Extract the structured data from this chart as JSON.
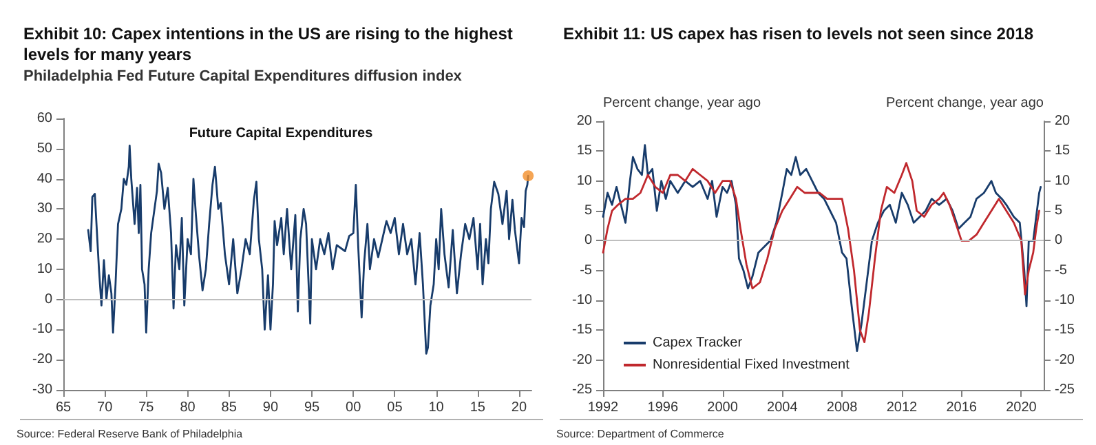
{
  "chart_data": [
    {
      "type": "line",
      "title": "Exhibit 10: Capex intentions in the US are rising to the highest levels for many years",
      "subtitle": "Philadelphia Fed Future Capital Expenditures diffusion index",
      "annotations": [
        "Future Capital Expenditures",
        "Source: Federal Reserve Bank of Philadelphia"
      ],
      "xlim": [
        1965,
        2021.5
      ],
      "xticks": [
        {
          "value": 1965,
          "label": "65"
        },
        {
          "value": 1970,
          "label": "70"
        },
        {
          "value": 1975,
          "label": "75"
        },
        {
          "value": 1980,
          "label": "80"
        },
        {
          "value": 1985,
          "label": "85"
        },
        {
          "value": 1990,
          "label": "90"
        },
        {
          "value": 1995,
          "label": "95"
        },
        {
          "value": 2000,
          "label": "00"
        },
        {
          "value": 2005,
          "label": "05"
        },
        {
          "value": 2010,
          "label": "10"
        },
        {
          "value": 2015,
          "label": "15"
        },
        {
          "value": 2020,
          "label": "20"
        }
      ],
      "ylim": [
        -30,
        60
      ],
      "yticks": [
        -30,
        -20,
        -10,
        0,
        10,
        20,
        30,
        40,
        50,
        60
      ],
      "grid": false,
      "legend": false,
      "ref_lines": [
        {
          "axis": "y",
          "value": 0,
          "color": "#bfbfbf"
        }
      ],
      "series": [
        {
          "color": "#183c6b",
          "x": [
            1968.0,
            1968.3,
            1968.5,
            1968.8,
            1969.0,
            1969.3,
            1969.6,
            1969.9,
            1970.2,
            1970.5,
            1970.8,
            1971.0,
            1971.3,
            1971.6,
            1972.0,
            1972.3,
            1972.6,
            1972.9,
            1973.0,
            1973.2,
            1973.6,
            1973.9,
            1974.1,
            1974.3,
            1974.5,
            1974.8,
            1975.0,
            1975.3,
            1975.6,
            1976.0,
            1976.3,
            1976.5,
            1976.8,
            1977.2,
            1977.6,
            1978.0,
            1978.3,
            1978.6,
            1979.0,
            1979.3,
            1979.6,
            1980.0,
            1980.4,
            1980.7,
            1981.0,
            1981.4,
            1981.8,
            1982.2,
            1982.6,
            1983.0,
            1983.3,
            1983.7,
            1984.0,
            1984.5,
            1985.0,
            1985.5,
            1986.0,
            1986.5,
            1987.0,
            1987.5,
            1988.0,
            1988.3,
            1988.6,
            1989.0,
            1989.3,
            1989.7,
            1990.0,
            1990.3,
            1990.5,
            1990.8,
            1991.3,
            1991.6,
            1992.0,
            1992.5,
            1993.0,
            1993.3,
            1993.6,
            1994.0,
            1994.3,
            1994.8,
            1995.0,
            1995.5,
            1996.0,
            1996.5,
            1997.0,
            1997.5,
            1998.0,
            1998.5,
            1999.0,
            1999.5,
            2000.0,
            2000.3,
            2000.6,
            2001.0,
            2001.3,
            2001.7,
            2002.0,
            2002.5,
            2003.0,
            2003.5,
            2004.0,
            2004.5,
            2005.0,
            2005.5,
            2006.0,
            2006.5,
            2007.0,
            2007.5,
            2008.0,
            2008.4,
            2008.8,
            2009.0,
            2009.3,
            2009.7,
            2010.0,
            2010.3,
            2010.6,
            2011.0,
            2011.5,
            2012.0,
            2012.5,
            2013.0,
            2013.5,
            2014.0,
            2014.5,
            2015.0,
            2015.3,
            2015.6,
            2016.0,
            2016.3,
            2016.6,
            2017.0,
            2017.5,
            2018.0,
            2018.5,
            2018.8,
            2019.2,
            2019.5,
            2020.0,
            2020.3,
            2020.6,
            2020.8,
            2021.0,
            2021.1
          ],
          "values": [
            23,
            16,
            34,
            35,
            25,
            10,
            -2,
            13,
            0,
            8,
            2,
            -11,
            5,
            25,
            30,
            40,
            38,
            44,
            51,
            40,
            25,
            37,
            22,
            38,
            10,
            5,
            -11,
            10,
            22,
            30,
            36,
            45,
            42,
            30,
            37,
            22,
            -3,
            18,
            10,
            27,
            -2,
            20,
            15,
            40,
            28,
            14,
            3,
            10,
            25,
            38,
            44,
            30,
            32,
            15,
            5,
            20,
            2,
            10,
            20,
            15,
            33,
            39,
            20,
            10,
            -10,
            8,
            -10,
            5,
            26,
            18,
            27,
            15,
            30,
            10,
            28,
            -4,
            20,
            30,
            25,
            -8,
            20,
            10,
            20,
            15,
            22,
            10,
            18,
            17,
            16,
            21,
            22,
            38,
            17,
            -6,
            12,
            25,
            10,
            20,
            14,
            20,
            26,
            22,
            27,
            15,
            25,
            15,
            20,
            5,
            22,
            5,
            -18,
            -16,
            -2,
            5,
            20,
            10,
            30,
            15,
            4,
            23,
            2,
            15,
            25,
            20,
            27,
            10,
            25,
            5,
            20,
            12,
            30,
            39,
            35,
            25,
            36,
            20,
            33,
            23,
            12,
            27,
            24,
            36,
            38,
            41
          ]
        },
        {
          "type": "scatter",
          "color": "#f28e2b",
          "x": [
            2021.1
          ],
          "values": [
            41
          ]
        }
      ]
    },
    {
      "type": "line",
      "title": "Exhibit 11: US capex has risen to levels not seen since 2018",
      "ylabel": "Percent change, year ago",
      "y2label": "Percent change, year ago",
      "annotations": [
        "Source: Department of Commerce"
      ],
      "xlim": [
        1992,
        2021.5
      ],
      "xticks": [
        1992,
        1996,
        2000,
        2004,
        2008,
        2012,
        2016,
        2020
      ],
      "ylim": [
        -25,
        20
      ],
      "yticks": [
        -25,
        -20,
        -15,
        -10,
        -5,
        0,
        5,
        10,
        15,
        20
      ],
      "y2lim": [
        -25,
        20
      ],
      "y2ticks": [
        -25,
        -20,
        -15,
        -10,
        -5,
        0,
        5,
        10,
        15,
        20
      ],
      "grid": false,
      "legend": "bottom left",
      "ref_lines": [
        {
          "axis": "y",
          "value": 0,
          "color": "#bfbfbf"
        }
      ],
      "series": [
        {
          "name": "Capex Tracker",
          "color": "#183c6b",
          "x": [
            1992.0,
            1992.3,
            1992.6,
            1992.9,
            1993.2,
            1993.5,
            1993.8,
            1994.0,
            1994.3,
            1994.6,
            1994.8,
            1995.0,
            1995.3,
            1995.6,
            1995.9,
            1996.2,
            1996.5,
            1997.0,
            1997.5,
            1998.0,
            1998.5,
            1999.0,
            1999.3,
            1999.6,
            2000.0,
            2000.3,
            2000.6,
            2000.9,
            2001.1,
            2001.4,
            2001.7,
            2002.0,
            2002.4,
            2002.8,
            2003.2,
            2003.6,
            2004.0,
            2004.3,
            2004.6,
            2004.9,
            2005.2,
            2005.6,
            2006.0,
            2006.4,
            2006.8,
            2007.2,
            2007.6,
            2008.0,
            2008.3,
            2008.6,
            2009.0,
            2009.3,
            2009.7,
            2010.0,
            2010.4,
            2010.8,
            2011.2,
            2011.6,
            2012.0,
            2012.4,
            2012.8,
            2013.2,
            2013.6,
            2014.0,
            2014.5,
            2015.0,
            2015.4,
            2015.8,
            2016.2,
            2016.6,
            2017.0,
            2017.5,
            2018.0,
            2018.3,
            2018.7,
            2019.0,
            2019.5,
            2019.9,
            2020.2,
            2020.35,
            2020.5,
            2020.8,
            2021.0,
            2021.2,
            2021.3
          ],
          "values": [
            4,
            8,
            6,
            9,
            6,
            3,
            10,
            14,
            12,
            11,
            16,
            11,
            12,
            5,
            10,
            7,
            10,
            8,
            10,
            9,
            10,
            7,
            10,
            4,
            9,
            8,
            10,
            6,
            -3,
            -5,
            -8,
            -6,
            -2,
            -1,
            0,
            3,
            8,
            12,
            11,
            14,
            11,
            12,
            10,
            8,
            7,
            5,
            3,
            -2,
            -3,
            -10,
            -18.5,
            -14,
            -6,
            0,
            3,
            5,
            6,
            3,
            8,
            6,
            3,
            4,
            5,
            7,
            6,
            7,
            5,
            2,
            3,
            4,
            7,
            8,
            10,
            8,
            7,
            6,
            4,
            3,
            -5,
            -11,
            0,
            0,
            4,
            8,
            9
          ]
        },
        {
          "name": "Nonresidential Fixed Investment",
          "color": "#c0282d",
          "x": [
            1992.0,
            1992.3,
            1992.6,
            1993.0,
            1993.5,
            1994.0,
            1994.5,
            1995.0,
            1995.5,
            1996.0,
            1996.5,
            1997.0,
            1997.5,
            1998.0,
            1998.5,
            1999.0,
            1999.5,
            2000.0,
            2000.5,
            2000.9,
            2001.2,
            2001.6,
            2002.0,
            2002.5,
            2003.0,
            2003.5,
            2004.0,
            2004.5,
            2005.0,
            2005.5,
            2006.0,
            2006.5,
            2007.0,
            2007.5,
            2008.0,
            2008.4,
            2008.8,
            2009.2,
            2009.5,
            2009.8,
            2010.2,
            2010.6,
            2011.0,
            2011.5,
            2012.0,
            2012.3,
            2012.7,
            2013.0,
            2013.5,
            2014.0,
            2014.5,
            2014.8,
            2015.2,
            2015.6,
            2016.0,
            2016.5,
            2017.0,
            2017.5,
            2018.0,
            2018.5,
            2019.0,
            2019.5,
            2020.0,
            2020.25,
            2020.5,
            2020.8,
            2021.0,
            2021.2
          ],
          "values": [
            -2,
            2,
            5,
            6,
            7,
            7,
            8,
            11,
            9,
            8,
            11,
            11,
            10,
            12,
            11,
            10,
            8,
            10,
            10,
            7,
            2,
            -4,
            -8,
            -7,
            -3,
            2,
            5,
            7,
            9,
            8,
            8,
            8,
            7,
            7,
            7,
            2,
            -5,
            -15,
            -17,
            -12,
            -3,
            5,
            9,
            8,
            11,
            13,
            10,
            5,
            4,
            6,
            7,
            8,
            6,
            3,
            0,
            0,
            1,
            3,
            5,
            7,
            5,
            3,
            0,
            -9,
            -5,
            -2,
            2,
            5
          ]
        }
      ]
    }
  ]
}
